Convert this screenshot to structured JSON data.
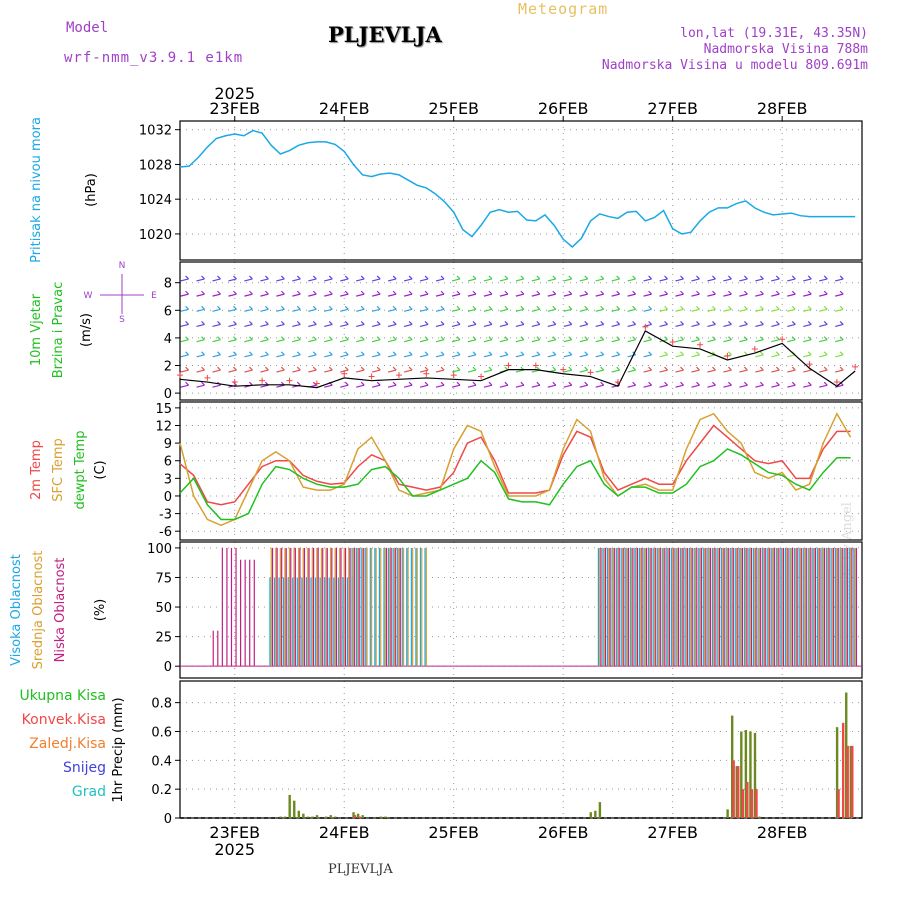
{
  "header": {
    "model_label": "Model",
    "model_version": "wrf-nmm_v3.9.1 e1km",
    "station": "PLJEVLJA",
    "meteogram": "Meteogram",
    "lonlat": "lon,lat (19.31E, 43.35N)",
    "altitude": "Nadmorska Visina 788m",
    "altitude_model": "Nadmorska Visina u modelu 809.691m"
  },
  "footer": {
    "station": "PLJEVLJA",
    "made_by": "made by Angel"
  },
  "time_axis": {
    "year": "2025",
    "days": [
      "23FEB",
      "24FEB",
      "25FEB",
      "26FEB",
      "27FEB",
      "28FEB"
    ]
  },
  "colors": {
    "pressure": "#1aa8e6",
    "temp2m": "#f04848",
    "sfc_temp": "#d8a030",
    "dewpoint": "#20c020",
    "high_cloud": "#1aa8e6",
    "mid_cloud": "#d8a030",
    "low_cloud": "#c02080",
    "total_precip": "#20c020",
    "conv_precip": "#f04848",
    "frozen_precip": "#f08030",
    "snow": "#4040e0",
    "hail": "#20c0c0"
  },
  "chart_data": [
    {
      "type": "line",
      "name": "pressure",
      "ylabel": [
        "Pritisak na nivou mora",
        "(hPa)"
      ],
      "ylim": [
        1017,
        1033
      ],
      "yticks": [
        1020,
        1024,
        1028,
        1032
      ],
      "grid": true,
      "x": [
        0,
        2,
        4,
        6,
        8,
        10,
        12,
        14,
        16,
        18,
        20,
        22,
        24,
        26,
        28,
        30,
        32,
        34,
        36,
        38,
        40,
        42,
        44,
        46,
        48,
        50,
        52,
        54,
        56,
        58,
        60,
        62,
        64,
        66,
        68,
        70,
        72,
        74,
        76,
        78,
        80,
        82,
        84,
        86,
        88,
        90,
        92,
        94,
        96,
        98,
        100,
        102,
        104,
        106,
        108,
        110,
        112,
        114,
        116,
        118,
        120,
        122,
        124,
        126,
        128,
        130,
        132,
        134,
        136,
        138,
        140,
        142,
        144,
        146,
        148
      ],
      "series": [
        {
          "values": [
            1027.7,
            1027.8,
            1028.8,
            1030,
            1031,
            1031.3,
            1031.5,
            1031.3,
            1031.9,
            1031.6,
            1030.2,
            1029.2,
            1029.6,
            1030.2,
            1030.5,
            1030.6,
            1030.6,
            1030.3,
            1029.5,
            1028,
            1026.8,
            1026.6,
            1026.9,
            1027,
            1026.8,
            1026.2,
            1025.6,
            1025.3,
            1024.6,
            1023.7,
            1022.5,
            1020.5,
            1019.7,
            1021,
            1022.5,
            1022.8,
            1022.5,
            1022.6,
            1021.6,
            1021.5,
            1022.2,
            1021,
            1019.4,
            1018.5,
            1019.5,
            1021.5,
            1022.3,
            1022,
            1021.8,
            1022.5,
            1022.6,
            1021.5,
            1021.9,
            1022.7,
            1020.6,
            1020,
            1020.2,
            1021.5,
            1022.5,
            1023,
            1023,
            1023.5,
            1023.8,
            1023,
            1022.5,
            1022.2,
            1022.3,
            1022.4,
            1022.1,
            1022,
            1022,
            1022,
            1022,
            1022,
            1022
          ]
        }
      ]
    },
    {
      "type": "scatter",
      "name": "wind",
      "ylabel": [
        "10m Vjetar",
        "Brzina i Pravac",
        "(m/s)"
      ],
      "compass": {
        "n": "N",
        "s": "S",
        "w": "W",
        "e": "E"
      },
      "ylim": [
        -0.5,
        9.5
      ],
      "yticks": [
        0,
        2,
        4,
        6,
        8
      ],
      "grid": true,
      "x": [
        0,
        6,
        12,
        18,
        24,
        30,
        36,
        42,
        48,
        54,
        60,
        66,
        72,
        78,
        84,
        90,
        96,
        102,
        108,
        114,
        120,
        126,
        132,
        138,
        144,
        148
      ],
      "series": [
        {
          "name": "speed",
          "values": [
            1.0,
            0.8,
            0.5,
            0.6,
            0.6,
            0.4,
            1.1,
            0.9,
            1.0,
            1.1,
            1.0,
            0.9,
            1.7,
            1.7,
            1.4,
            1.2,
            0.5,
            4.5,
            3.4,
            3.2,
            2.4,
            2.9,
            3.6,
            1.8,
            0.5,
            1.6
          ]
        }
      ]
    },
    {
      "type": "line",
      "name": "temperature",
      "ylabel": [
        "2m Temp",
        "SFC Temp",
        "dewpt Temp",
        "(C)"
      ],
      "ylim": [
        -7.5,
        16
      ],
      "yticks": [
        -6,
        -3,
        0,
        3,
        6,
        9,
        12,
        15
      ],
      "grid": true,
      "x": [
        0,
        3,
        6,
        9,
        12,
        15,
        18,
        21,
        24,
        27,
        30,
        33,
        36,
        39,
        42,
        45,
        48,
        51,
        54,
        57,
        60,
        63,
        66,
        69,
        72,
        75,
        78,
        81,
        84,
        87,
        90,
        93,
        96,
        99,
        102,
        105,
        108,
        111,
        114,
        117,
        120,
        123,
        126,
        129,
        132,
        135,
        138,
        141,
        144,
        147
      ],
      "series": [
        {
          "name": "2m Temp",
          "values": [
            5.5,
            3.5,
            -1,
            -1.5,
            -1,
            2,
            5,
            6,
            6,
            3.5,
            2.5,
            2,
            2.2,
            5,
            7,
            6,
            2,
            1.5,
            1,
            1.5,
            4,
            9,
            10,
            6,
            0.5,
            0.5,
            0.5,
            1,
            7,
            11,
            10,
            4,
            1,
            2,
            3,
            2,
            2,
            6,
            9,
            12,
            10,
            8,
            6,
            5.5,
            6,
            3,
            3,
            8,
            11,
            11
          ]
        },
        {
          "name": "SFC Temp",
          "values": [
            9,
            0,
            -4,
            -5,
            -4,
            1,
            6,
            7.5,
            6,
            1.5,
            1,
            1,
            2,
            8,
            10,
            6,
            1,
            0,
            0.5,
            1,
            8,
            12,
            11,
            5,
            0,
            0,
            0,
            1,
            8,
            13,
            11,
            3,
            0,
            1.5,
            2,
            1,
            1,
            8,
            13,
            14,
            11,
            9,
            4,
            3,
            4,
            1,
            2,
            9,
            14,
            10
          ]
        },
        {
          "name": "dewpt Temp",
          "values": [
            0.5,
            3,
            -1.5,
            -4,
            -4,
            -3,
            2,
            5,
            4.5,
            3,
            2,
            1.5,
            1.5,
            2,
            4.5,
            5,
            3,
            0,
            0,
            1,
            2,
            3,
            6,
            4,
            -0.5,
            -1,
            -1,
            -1.5,
            2,
            5,
            6,
            2,
            0,
            1.5,
            1.5,
            0.5,
            0.5,
            2,
            5,
            6,
            8,
            7,
            5.5,
            4,
            3.5,
            2,
            1,
            4,
            6.5,
            6.5
          ]
        }
      ]
    },
    {
      "type": "bar",
      "name": "cloud",
      "ylabel": [
        "Visoka Oblacnost",
        "Srednja Oblacnost",
        "Niska Oblacnost",
        "(%)"
      ],
      "ylim": [
        -10,
        105
      ],
      "yticks": [
        0,
        25,
        50,
        75,
        100
      ],
      "grid": true,
      "series": [
        {
          "name": "Visoka Oblacnost",
          "segments": [
            [
              20,
              38,
              75
            ],
            [
              38,
              54,
              100
            ],
            [
              92,
              148,
              100
            ]
          ]
        },
        {
          "name": "Srednja Oblacnost",
          "segments": [
            [
              20,
              54,
              100
            ],
            [
              92,
              148,
              100
            ]
          ]
        },
        {
          "name": "Niska Oblacnost",
          "segments": [
            [
              7,
              8,
              30
            ],
            [
              9,
              12,
              100
            ],
            [
              13,
              16,
              90
            ],
            [
              20,
              40,
              100
            ],
            [
              45,
              48,
              100
            ],
            [
              92,
              148,
              100
            ]
          ]
        }
      ]
    },
    {
      "type": "bar",
      "name": "precip",
      "ylabel": [
        "Ukupna Kisa",
        "Konvek.Kisa",
        "Zaledj.Kisa",
        "Snijeg",
        "Grad",
        "1hr Precip (mm)"
      ],
      "ylim": [
        0,
        0.95
      ],
      "yticks": [
        0,
        0.2,
        0.4,
        0.6,
        0.8
      ],
      "grid": true,
      "x": [
        22,
        23,
        24,
        25,
        26,
        27,
        28,
        29,
        30,
        32,
        33,
        34,
        38,
        39,
        40,
        44,
        45,
        90,
        91,
        92,
        120,
        121,
        122,
        123,
        124,
        125,
        126,
        127,
        144,
        145,
        146,
        147
      ],
      "series": [
        {
          "name": "Ukupna Kisa",
          "values": [
            0.01,
            0.01,
            0.16,
            0.12,
            0.05,
            0.03,
            0.01,
            0.01,
            0.02,
            0.01,
            0.02,
            0.01,
            0.04,
            0.03,
            0.02,
            0.01,
            0.01,
            0.04,
            0.05,
            0.11,
            0.06,
            0.71,
            0.36,
            0.6,
            0.61,
            0.6,
            0.59,
            0.01,
            0.63,
            0.0,
            0.87,
            0.5
          ]
        },
        {
          "name": "Konvek.Kisa",
          "values": [
            0,
            0,
            0,
            0,
            0,
            0,
            0,
            0,
            0,
            0,
            0,
            0,
            0.02,
            0.01,
            0,
            0,
            0,
            0,
            0,
            0,
            0,
            0.4,
            0.36,
            0.2,
            0.25,
            0.2,
            0.2,
            0,
            0.2,
            0.66,
            0.5,
            0.5
          ]
        }
      ]
    }
  ]
}
